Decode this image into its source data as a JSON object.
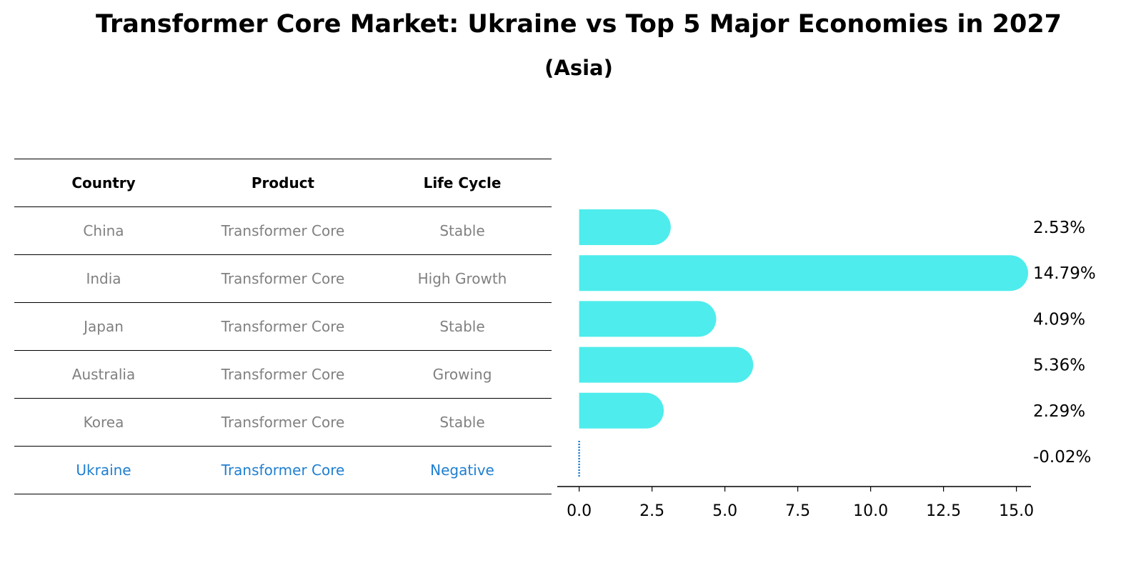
{
  "title": "Transformer Core Market: Ukraine vs Top 5 Major Economies in 2027",
  "subtitle": "(Asia)",
  "table": {
    "headers": [
      "Country",
      "Product",
      "Life Cycle"
    ],
    "rows": [
      [
        "China",
        "Transformer Core",
        "Stable"
      ],
      [
        "India",
        "Transformer Core",
        "High Growth"
      ],
      [
        "Japan",
        "Transformer Core",
        "Stable"
      ],
      [
        "Australia",
        "Transformer Core",
        "Growing"
      ],
      [
        "Korea",
        "Transformer Core",
        "Stable"
      ],
      [
        "Ukraine",
        "Transformer Core",
        "Negative"
      ]
    ]
  },
  "colors": {
    "bar": "#4eecec",
    "highlight": "#1f7fd0",
    "muted_text": "#808080"
  },
  "chart_data": {
    "type": "bar",
    "orientation": "horizontal",
    "categories": [
      "China",
      "India",
      "Japan",
      "Australia",
      "Korea",
      "Ukraine"
    ],
    "values": [
      2.53,
      14.79,
      4.09,
      5.36,
      2.29,
      -0.02
    ],
    "labels": [
      "2.53%",
      "14.79%",
      "4.09%",
      "5.36%",
      "2.29%",
      "-0.02%"
    ],
    "xlim": [
      -0.75,
      15.5
    ],
    "xticks": [
      0.0,
      2.5,
      5.0,
      7.5,
      10.0,
      12.5,
      15.0
    ],
    "xtick_labels": [
      "0.0",
      "2.5",
      "5.0",
      "7.5",
      "10.0",
      "12.5",
      "15.0"
    ],
    "xlabel": "",
    "ylabel": "",
    "grid": false,
    "highlight": "Ukraine"
  }
}
